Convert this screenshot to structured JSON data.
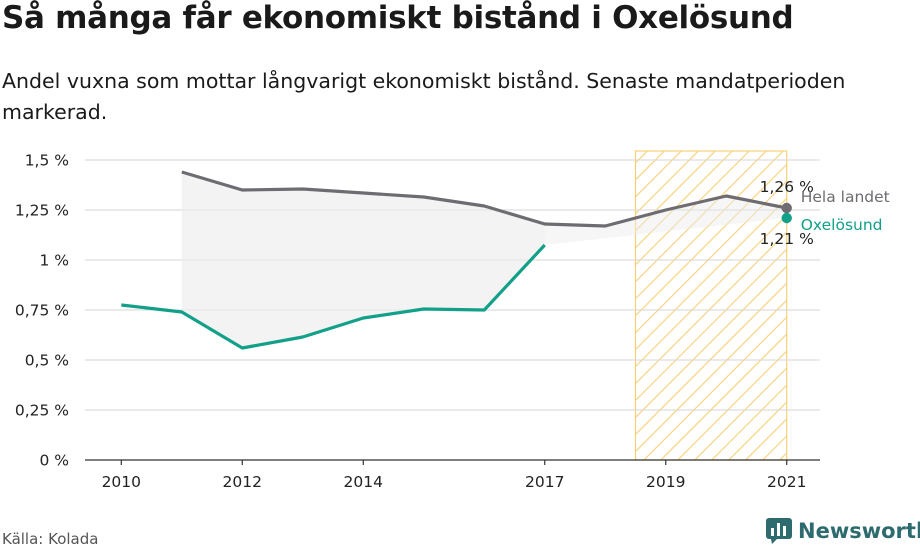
{
  "header": {
    "title": "Så många får ekonomiskt bistånd i Oxelösund",
    "subtitle": "Andel vuxna som mottar långvarigt ekonomiskt bistånd. Senaste mandatperioden markerad."
  },
  "footer": {
    "source": "Källa: Kolada",
    "brand": "Newsworthy"
  },
  "colors": {
    "national": "#6e6c70",
    "local": "#12a089",
    "highlight": "#f6c85f",
    "gap_fill": "#ececec",
    "grid": "#d6d6d6",
    "brand": "#2d6b6e"
  },
  "icons": {
    "logo": "newsworthy-chart-icon"
  },
  "chart_data": {
    "type": "line",
    "x_ticks": [
      "2010",
      "2012",
      "2014",
      "2017",
      "2019",
      "2021"
    ],
    "y_ticks": [
      "0 %",
      "0,25 %",
      "0,5 %",
      "0,75 %",
      "1 %",
      "1,25 %",
      "1,5 %"
    ],
    "ylim": [
      0,
      1.6
    ],
    "xlim": [
      2009.4,
      2021.55
    ],
    "grid": true,
    "highlight_period": [
      2018.5,
      2021
    ],
    "series": [
      {
        "name": "Hela landet",
        "x": [
          2011,
          2012,
          2013,
          2014,
          2015,
          2016,
          2017,
          2018,
          2019,
          2020,
          2021
        ],
        "values": [
          1.44,
          1.35,
          1.355,
          1.335,
          1.315,
          1.27,
          1.18,
          1.17,
          1.25,
          1.32,
          1.26
        ]
      },
      {
        "name": "Oxelösund",
        "x": [
          2010,
          2011,
          2012,
          2013,
          2014,
          2015,
          2016,
          2017
        ],
        "values": [
          0.775,
          0.74,
          0.56,
          0.615,
          0.71,
          0.755,
          0.75,
          1.075
        ],
        "end_point": {
          "x": 2021,
          "value": 1.21
        }
      }
    ],
    "value_labels": {
      "national_last": "1,26 %",
      "local_last": "1,21 %"
    }
  }
}
